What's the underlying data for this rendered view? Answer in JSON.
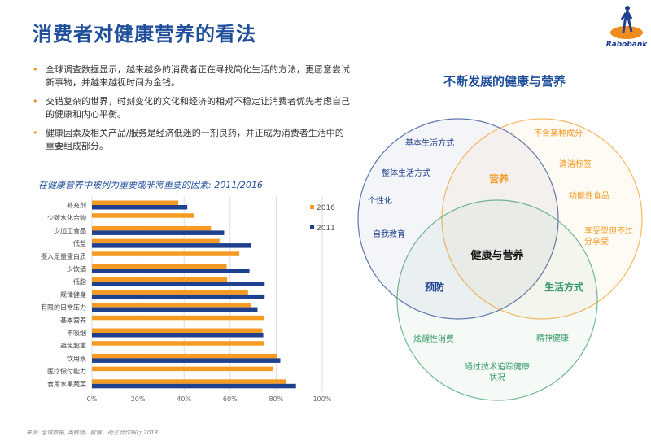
{
  "header": {
    "title": "消费者对健康营养的看法",
    "logo_text": "Rabobank"
  },
  "bullets": [
    "全球调查数据显示，越来越多的消费者正在寻找简化生活的方法，更愿意尝试新事物，并越来越视时间为金钱。",
    "交错复杂的世界，时刻变化的文化和经济的相对不稳定让消费者优先考虑自己的健康和内心平衡。",
    "健康因素及相关产品/服务是经济低迷的一剂良药，并正成为消费者生活中的重要组成部分。"
  ],
  "bullet_marker": "•",
  "chart_data": {
    "type": "bar",
    "orientation": "horizontal",
    "title": "在健康营养中被列为重要或非常重要的因素: 2011/2016",
    "categories": [
      "补充剂",
      "少碳水化合物",
      "少加工食品",
      "低盐",
      "摄入足量蛋白质",
      "少饮酒",
      "低脂",
      "规律健身",
      "有限的日常压力",
      "基本营养",
      "不吸烟",
      "避免超重",
      "饮用水",
      "医疗偿付能力",
      "食用水果蔬菜"
    ],
    "series": [
      {
        "name": "2016",
        "color": "#f59b23",
        "values": [
          37.5,
          44.2,
          51.7,
          55.4,
          64,
          58.5,
          58.7,
          67.8,
          68.9,
          74.6,
          74,
          74.6,
          80.2,
          78.5,
          84.2
        ]
      },
      {
        "name": "2011",
        "color": "#1f3f8f",
        "values": [
          41.4,
          null,
          57.4,
          69,
          null,
          68.4,
          75,
          75,
          71.9,
          null,
          74.4,
          null,
          81.8,
          null,
          88.6
        ]
      }
    ],
    "xlim": [
      0,
      100
    ],
    "ticks": [
      "0%",
      "20%",
      "40%",
      "60%",
      "80%",
      "100%"
    ],
    "grid": true,
    "legend": "right"
  },
  "venn": {
    "title": "不断发展的健康与营养",
    "center": "健康与营养",
    "overlaps": {
      "blue_orange": "营养",
      "blue_green": "预防",
      "orange_green": "生活方式"
    },
    "blue_items": [
      "基本生活方式",
      "整体生活方式",
      "个性化",
      "自我教育"
    ],
    "orange_items": [
      "不含某种成分",
      "清洁标签",
      "功能性食品",
      "享受型但不过",
      "分享受"
    ],
    "green_items": [
      "炫耀性消费",
      "精神健康",
      "通过技术追踪健康",
      "状况"
    ],
    "colors": {
      "blue": "#1f3f8f",
      "orange": "#f59b23",
      "green": "#3a9a6a"
    }
  },
  "source": "来源: 全球数据, 英敏特，欧睿，荷兰合作银行 2018"
}
